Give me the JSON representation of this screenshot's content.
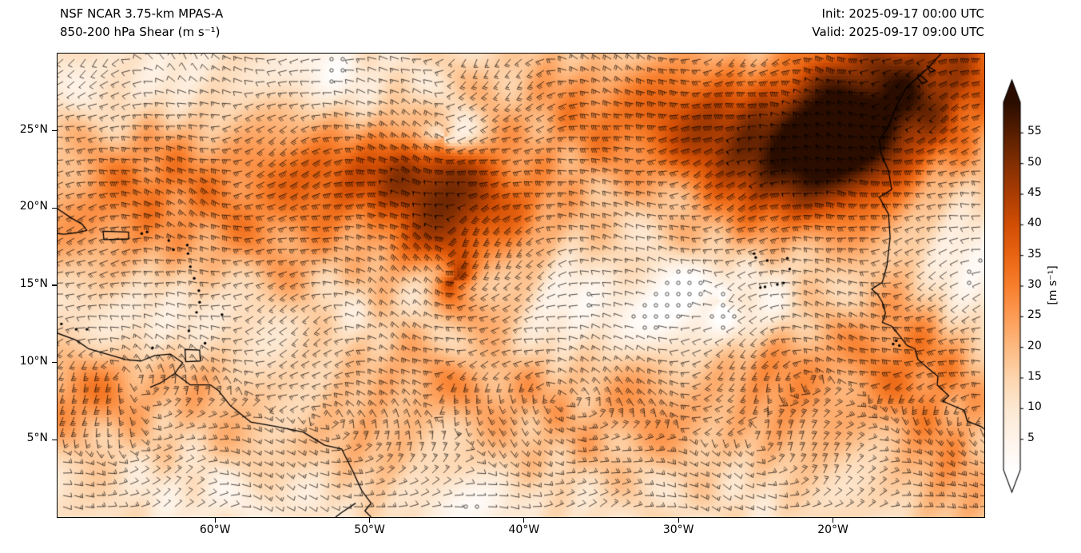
{
  "header": {
    "title_line1": "NSF NCAR 3.75-km MPAS-A",
    "title_line2": "850-200 hPa Shear (m s⁻¹)",
    "init_time": "Init: 2025-09-17 00:00 UTC",
    "valid_time": "Valid: 2025-09-17 09:00 UTC"
  },
  "axes": {
    "y_ticks": [
      {
        "label": "25°N",
        "lat": 25
      },
      {
        "label": "20°N",
        "lat": 20
      },
      {
        "label": "15°N",
        "lat": 15
      },
      {
        "label": "10°N",
        "lat": 10
      },
      {
        "label": "5°N",
        "lat": 5
      }
    ],
    "x_ticks": [
      {
        "label": "60°W",
        "lon": -60
      },
      {
        "label": "50°W",
        "lon": -50
      },
      {
        "label": "40°W",
        "lon": -40
      },
      {
        "label": "30°W",
        "lon": -30
      },
      {
        "label": "20°W",
        "lon": -20
      }
    ]
  },
  "colorbar": {
    "label": "[m s⁻¹]",
    "ticks": [
      5,
      10,
      15,
      20,
      25,
      30,
      35,
      40,
      45,
      50,
      55
    ],
    "range": [
      0,
      60
    ],
    "extend": "both"
  },
  "chart_data": {
    "type": "heatmap",
    "model": "NSF NCAR 3.75-km MPAS-A",
    "title": "850-200 hPa Shear (m s⁻¹)",
    "init": "2025-09-17 00:00 UTC",
    "valid": "2025-09-17 09:00 UTC",
    "units": "m s⁻¹",
    "overlay": "shear wind barbs (black), calm circles in low-shear areas, coastlines",
    "geo": {
      "lon_min": -70.2,
      "lon_max": -10.2,
      "lat_min": 0,
      "lat_max": 30
    },
    "colormap_stops": [
      [
        0,
        "#ffffff"
      ],
      [
        5,
        "#fef4ea"
      ],
      [
        10,
        "#fde8d2"
      ],
      [
        15,
        "#fdd5ae"
      ],
      [
        20,
        "#fdba82"
      ],
      [
        25,
        "#fd9c56"
      ],
      [
        30,
        "#f87f2c"
      ],
      [
        35,
        "#e96513"
      ],
      [
        40,
        "#d24e04"
      ],
      [
        45,
        "#ab3d03"
      ],
      [
        50,
        "#832f03"
      ],
      [
        55,
        "#571e01"
      ],
      [
        60,
        "#2b0d00"
      ]
    ],
    "base_value": 12,
    "features": [
      {
        "desc": "very strong shear maximum 50-60 m/s, NE quadrant off NW Africa",
        "lon": -16,
        "lat": 27.5,
        "value": 58
      },
      {
        "desc": "dark shear band across central Atlantic near 20-23N",
        "lon": -48,
        "lat": 21.8,
        "value": 46
      },
      {
        "desc": "cyclonic vortex with spiral shear bands",
        "lon": -44.5,
        "lat": 15.4,
        "value": 30
      },
      {
        "desc": "low-shear calm eddy west of Cape Verde",
        "lon": -27.2,
        "lat": 13.9,
        "value": 3
      },
      {
        "desc": "small white vortex north of main band",
        "lon": -45.2,
        "lat": 24.6,
        "value": 4
      },
      {
        "desc": "moderate shear 25-35 m/s along West African coast south of 12N",
        "lon": -14,
        "lat": 10.5,
        "value": 30
      }
    ],
    "blobs": [
      [
        40,
        -16,
        27.5,
        6,
        3.6,
        20
      ],
      [
        24,
        -30,
        25.5,
        7,
        2.9,
        -8
      ],
      [
        28,
        -21.5,
        22.5,
        4.5,
        3,
        25
      ],
      [
        30,
        -48,
        21.8,
        6.5,
        2.5,
        -10
      ],
      [
        16,
        -44.5,
        18.5,
        3.5,
        3.2,
        0
      ],
      [
        13,
        -57.5,
        18,
        4.5,
        3,
        -20
      ],
      [
        13,
        -67.5,
        18.5,
        3.5,
        4.5,
        0
      ],
      [
        9,
        -63,
        22.5,
        4,
        2.6,
        0
      ],
      [
        15,
        -14,
        10.5,
        3.5,
        4,
        0
      ],
      [
        13,
        -24,
        8.8,
        6,
        3.2,
        10
      ],
      [
        9,
        -37,
        6.5,
        6,
        3,
        0
      ],
      [
        9,
        -46,
        9.5,
        4,
        2.6,
        0
      ],
      [
        7,
        -55,
        4.5,
        5,
        2.5,
        0
      ],
      [
        9,
        -69.5,
        7.5,
        3,
        2.5,
        0
      ],
      [
        11,
        -64,
        8.8,
        5,
        2.2,
        5
      ],
      [
        9,
        -12.5,
        3,
        3,
        3,
        0
      ],
      [
        12,
        -44.3,
        15.4,
        0.7,
        0.7,
        0
      ],
      [
        -13,
        -27.5,
        13.8,
        3.5,
        2.3,
        0
      ],
      [
        -9,
        -33.5,
        12.5,
        2.6,
        1.8,
        0
      ],
      [
        -11,
        -62.5,
        12.5,
        3.5,
        2.5,
        0
      ],
      [
        -14,
        -45.2,
        24.7,
        1.6,
        1.1,
        0
      ],
      [
        -9,
        -53,
        28.5,
        3,
        1.6,
        0
      ],
      [
        -11,
        -11.5,
        15,
        2.3,
        2.6,
        0
      ],
      [
        -7,
        -58.5,
        1.5,
        4,
        1.5,
        0
      ],
      [
        -7,
        -42.5,
        1,
        3,
        1.3,
        0
      ],
      [
        -5,
        -36.5,
        14.5,
        2,
        1.5,
        0
      ],
      [
        -7,
        -70,
        13,
        2,
        2,
        0
      ],
      [
        -5,
        -50.5,
        13.2,
        2,
        1.4,
        0
      ],
      [
        -6,
        -66,
        27.5,
        3,
        2,
        0
      ],
      [
        -5,
        -57,
        24.5,
        2.2,
        1.5,
        0
      ]
    ],
    "spirals": [
      [
        -44.5,
        15.4,
        7,
        5,
        2,
        1.1,
        0.5
      ],
      [
        -27.2,
        13.9,
        5,
        4.5,
        2,
        1.0,
        2.0
      ],
      [
        -45.2,
        24.6,
        6,
        2.5,
        2,
        1.4,
        0.0
      ]
    ],
    "vortices": [
      [
        -44.5,
        15.4,
        5,
        9,
        1
      ],
      [
        -27.2,
        13.9,
        4,
        7,
        1
      ],
      [
        -45.2,
        24.6,
        2.6,
        7,
        1
      ],
      [
        -59,
        20,
        4,
        4,
        1
      ]
    ]
  },
  "map": {
    "coastlines": {
      "south_america": [
        [
          -70.2,
          11.9
        ],
        [
          -69.0,
          11.45
        ],
        [
          -68.2,
          10.9
        ],
        [
          -67.0,
          10.55
        ],
        [
          -65.8,
          10.2
        ],
        [
          -64.8,
          10.1
        ],
        [
          -63.9,
          10.45
        ],
        [
          -62.9,
          10.55
        ],
        [
          -62.1,
          10.0
        ],
        [
          -62.6,
          9.3
        ],
        [
          -61.6,
          8.55
        ],
        [
          -60.3,
          8.55
        ],
        [
          -59.8,
          8.2
        ],
        [
          -59.0,
          7.2
        ],
        [
          -57.7,
          6.15
        ],
        [
          -56.0,
          5.85
        ],
        [
          -54.3,
          5.5
        ],
        [
          -52.9,
          4.65
        ],
        [
          -51.8,
          4.4
        ],
        [
          -51.1,
          3.0
        ],
        [
          -50.5,
          1.7
        ],
        [
          -49.9,
          0.9
        ],
        [
          -50.3,
          0.4
        ],
        [
          -49.9,
          0.0
        ]
      ],
      "africa": [
        [
          -13.0,
          30.0
        ],
        [
          -13.9,
          29.0
        ],
        [
          -14.8,
          28.2
        ],
        [
          -15.3,
          27.7
        ],
        [
          -15.9,
          26.6
        ],
        [
          -16.4,
          25.3
        ],
        [
          -17.0,
          24.4
        ],
        [
          -16.9,
          23.6
        ],
        [
          -16.4,
          22.4
        ],
        [
          -16.2,
          21.2
        ],
        [
          -17.0,
          20.7
        ],
        [
          -16.4,
          19.6
        ],
        [
          -16.3,
          18.1
        ],
        [
          -16.5,
          16.3
        ],
        [
          -16.8,
          15.2
        ],
        [
          -17.5,
          14.75
        ],
        [
          -17.1,
          14.4
        ],
        [
          -16.8,
          13.9
        ],
        [
          -16.6,
          13.2
        ],
        [
          -16.8,
          12.6
        ],
        [
          -16.2,
          12.35
        ],
        [
          -15.7,
          11.75
        ],
        [
          -15.2,
          11.1
        ],
        [
          -14.7,
          10.9
        ],
        [
          -14.5,
          10.2
        ],
        [
          -13.8,
          9.6
        ],
        [
          -13.2,
          9.1
        ],
        [
          -13.25,
          8.55
        ],
        [
          -12.5,
          7.85
        ],
        [
          -12.9,
          7.5
        ],
        [
          -11.5,
          6.9
        ],
        [
          -11.3,
          6.2
        ],
        [
          -10.4,
          5.85
        ],
        [
          -10.2,
          5.7
        ]
      ],
      "hispaniola": [
        [
          -70.2,
          19.95
        ],
        [
          -69.3,
          19.35
        ],
        [
          -68.6,
          18.95
        ],
        [
          -68.3,
          18.55
        ],
        [
          -69.0,
          18.4
        ],
        [
          -69.8,
          18.3
        ],
        [
          -70.2,
          18.35
        ]
      ],
      "orinoco_branch": [
        [
          -62.6,
          9.3
        ],
        [
          -63.5,
          8.7
        ],
        [
          -64.2,
          8.4
        ]
      ],
      "amazon_branch": [
        [
          -50.9,
          0.9
        ],
        [
          -51.8,
          0.3
        ],
        [
          -52.2,
          0.0
        ]
      ]
    },
    "polygons": {
      "trinidad": [
        [
          -61.95,
          10.85
        ],
        [
          -61.0,
          10.8
        ],
        [
          -60.95,
          10.1
        ],
        [
          -61.9,
          10.05
        ]
      ],
      "puerto_rico": [
        [
          -67.25,
          18.5
        ],
        [
          -65.6,
          18.45
        ],
        [
          -65.6,
          18.0
        ],
        [
          -67.2,
          17.95
        ]
      ],
      "lanzarote": [
        [
          -13.9,
          29.2
        ],
        [
          -13.4,
          28.9
        ],
        [
          -13.7,
          28.8
        ]
      ],
      "fuerteventura": [
        [
          -14.35,
          28.6
        ],
        [
          -13.9,
          28.2
        ],
        [
          -14.2,
          28.05
        ],
        [
          -14.55,
          28.45
        ]
      ]
    },
    "islands": [
      [
        -61.7,
        12.05
      ],
      [
        -61.2,
        13.25
      ],
      [
        -61.0,
        13.9
      ],
      [
        -61.05,
        14.65
      ],
      [
        -61.35,
        15.45
      ],
      [
        -61.6,
        16.2
      ],
      [
        -61.75,
        17.05
      ],
      [
        -61.8,
        17.6
      ],
      [
        -62.7,
        17.3
      ],
      [
        -63.0,
        17.9
      ],
      [
        -59.55,
        13.1
      ],
      [
        -60.65,
        11.25
      ],
      [
        -64.05,
        10.95
      ],
      [
        -69.0,
        12.15
      ],
      [
        -68.3,
        12.15
      ],
      [
        -69.95,
        12.5
      ],
      [
        -64.75,
        18.35
      ],
      [
        -64.4,
        18.45
      ],
      [
        -25.1,
        17.05
      ],
      [
        -25.0,
        16.8
      ],
      [
        -24.25,
        16.6
      ],
      [
        -22.95,
        16.75
      ],
      [
        -22.8,
        16.05
      ],
      [
        -23.6,
        15.05
      ],
      [
        -23.2,
        15.15
      ],
      [
        -24.4,
        14.9
      ],
      [
        -24.7,
        14.85
      ],
      [
        -15.9,
        11.4
      ],
      [
        -16.1,
        11.2
      ],
      [
        -15.7,
        11.1
      ]
    ]
  }
}
